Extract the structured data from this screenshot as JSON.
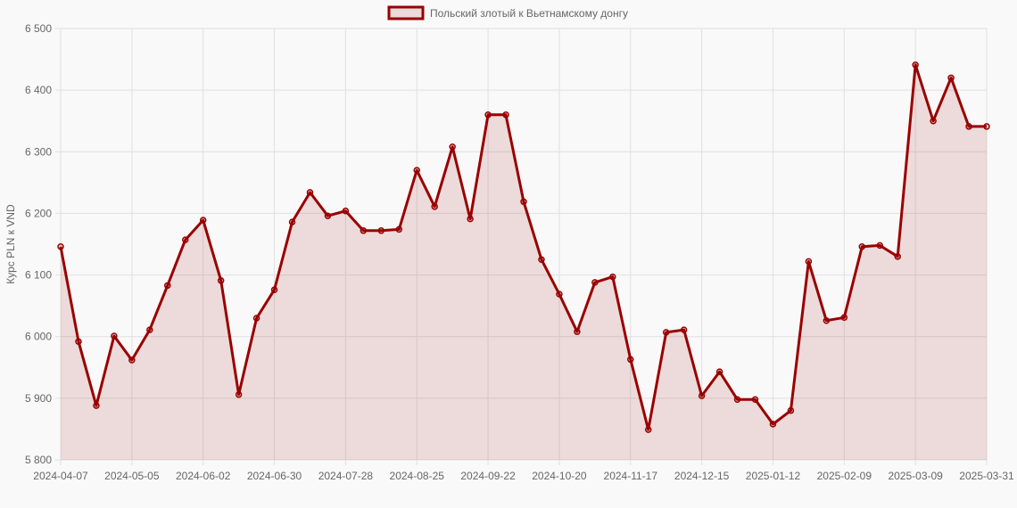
{
  "chart_data": {
    "type": "line",
    "legend": {
      "label": "Польский злотый к Вьетнамскому донгу",
      "position": "top"
    },
    "ylabel": "Курс PLN к VND",
    "xlabel": "",
    "ylim": [
      5800,
      6500
    ],
    "yticks": [
      "5 800",
      "5 900",
      "6 000",
      "6 100",
      "6 200",
      "6 300",
      "6 400",
      "6 500"
    ],
    "grid": true,
    "filled": true,
    "colors": {
      "line": "#990000",
      "fill": "rgba(153,0,0,0.12)",
      "grid": "#e0e0e0"
    },
    "x": [
      "2024-04-07",
      "2024-04-14",
      "2024-04-21",
      "2024-04-28",
      "2024-05-05",
      "2024-05-12",
      "2024-05-19",
      "2024-05-26",
      "2024-06-02",
      "2024-06-09",
      "2024-06-16",
      "2024-06-23",
      "2024-06-30",
      "2024-07-07",
      "2024-07-14",
      "2024-07-21",
      "2024-07-28",
      "2024-08-04",
      "2024-08-11",
      "2024-08-18",
      "2024-08-25",
      "2024-09-01",
      "2024-09-08",
      "2024-09-15",
      "2024-09-22",
      "2024-09-29",
      "2024-10-06",
      "2024-10-13",
      "2024-10-20",
      "2024-10-27",
      "2024-11-03",
      "2024-11-10",
      "2024-11-17",
      "2024-11-24",
      "2024-12-01",
      "2024-12-08",
      "2024-12-15",
      "2024-12-22",
      "2024-12-29",
      "2025-01-05",
      "2025-01-12",
      "2025-01-19",
      "2025-01-26",
      "2025-02-02",
      "2025-02-09",
      "2025-02-16",
      "2025-02-23",
      "2025-03-02",
      "2025-03-09",
      "2025-03-16",
      "2025-03-23",
      "2025-03-30",
      "2025-03-31"
    ],
    "xticks": [
      "2024-04-07",
      "2024-05-05",
      "2024-06-02",
      "2024-06-30",
      "2024-07-28",
      "2024-08-25",
      "2024-09-22",
      "2024-10-20",
      "2024-11-17",
      "2024-12-15",
      "2025-01-12",
      "2025-02-09",
      "2025-03-09",
      "2025-03-31"
    ],
    "series": [
      {
        "name": "Польский злотый к Вьетнамскому донгу",
        "values": [
          6146,
          5992,
          5888,
          6001,
          5962,
          6011,
          6083,
          6157,
          6189,
          6091,
          5906,
          6030,
          6076,
          6186,
          6234,
          6196,
          6204,
          6172,
          6172,
          6174,
          6270,
          6211,
          6308,
          6191,
          6360,
          6360,
          6219,
          6125,
          6069,
          6008,
          6088,
          6097,
          5963,
          5849,
          6007,
          6011,
          5904,
          5943,
          5898,
          5898,
          5858,
          5880,
          6122,
          6026,
          6031,
          6146,
          6148,
          6130,
          6441,
          6350,
          6420,
          6341,
          6341
        ]
      }
    ]
  }
}
